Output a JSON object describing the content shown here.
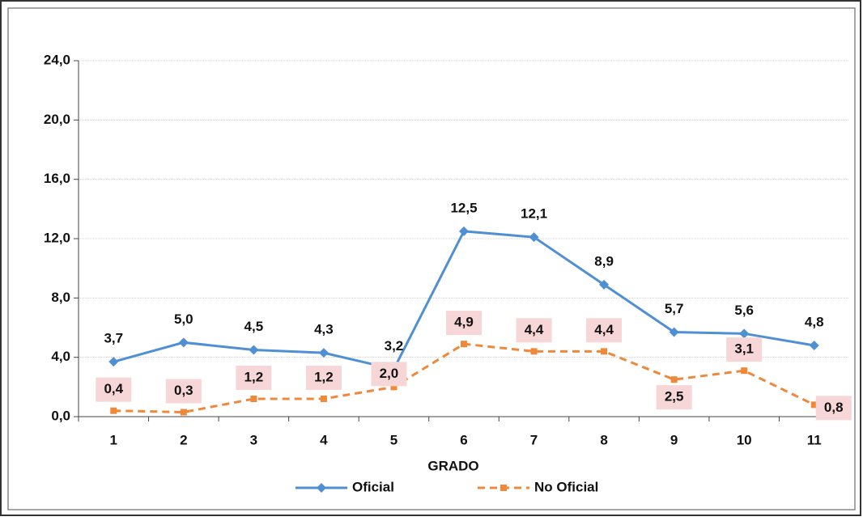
{
  "chart_data": {
    "type": "line",
    "categories": [
      "1",
      "2",
      "3",
      "4",
      "5",
      "6",
      "7",
      "8",
      "9",
      "10",
      "11"
    ],
    "x_label": "GRADO",
    "ylim": [
      0,
      24
    ],
    "yticks": [
      {
        "value": 0,
        "label": "0,0"
      },
      {
        "value": 4,
        "label": "4,0"
      },
      {
        "value": 8,
        "label": "8,0"
      },
      {
        "value": 12,
        "label": "12,0"
      },
      {
        "value": 16,
        "label": "16,0"
      },
      {
        "value": 20,
        "label": "20,0"
      },
      {
        "value": 24,
        "label": "24,0"
      }
    ],
    "grid": true,
    "legend": "bottom",
    "series": [
      {
        "name": "Oficial",
        "color": "#4f8fd3",
        "dash": false,
        "marker": "diamond",
        "values": [
          3.7,
          5.0,
          4.5,
          4.3,
          3.2,
          12.5,
          12.1,
          8.9,
          5.7,
          5.6,
          4.8
        ],
        "value_labels": [
          "3,7",
          "5,0",
          "4,5",
          "4,3",
          "3,2",
          "12,5",
          "12,1",
          "8,9",
          "5,7",
          "5,6",
          "4,8"
        ]
      },
      {
        "name": "No Oficial",
        "color": "#f0883a",
        "dash": true,
        "marker": "square",
        "values": [
          0.4,
          0.3,
          1.2,
          1.2,
          2.0,
          4.9,
          4.4,
          4.4,
          2.5,
          3.1,
          0.8
        ],
        "value_labels": [
          "0,4",
          "0,3",
          "1,2",
          "1,2",
          "2,0",
          "4,9",
          "4,4",
          "4,4",
          "2,5",
          "3,1",
          "0,8"
        ]
      }
    ]
  }
}
